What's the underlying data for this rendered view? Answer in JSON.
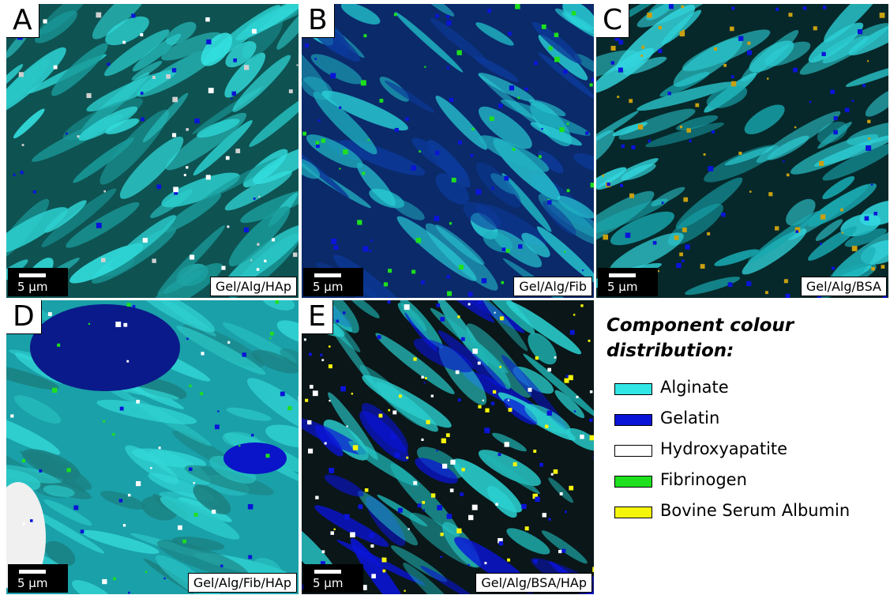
{
  "panels": [
    {
      "letter": "A",
      "scale_bar": "5 µm",
      "sample": "Gel/Alg/HAp"
    },
    {
      "letter": "B",
      "scale_bar": "5 µm",
      "sample": "Gel/Alg/Fib"
    },
    {
      "letter": "C",
      "scale_bar": "5 µm",
      "sample": "Gel/Alg/BSA"
    },
    {
      "letter": "D",
      "scale_bar": "5 µm",
      "sample": "Gel/Alg/Fib/HAp"
    },
    {
      "letter": "E",
      "scale_bar": "5 µm",
      "sample": "Gel/Alg/BSA/HAp"
    }
  ],
  "legend": {
    "title": "Component colour distribution:",
    "items": [
      {
        "label": "Alginate",
        "color": "#33e6e6"
      },
      {
        "label": "Gelatin",
        "color": "#0a14d8"
      },
      {
        "label": "Hydroxyapatite",
        "color": "#ffffff"
      },
      {
        "label": "Fibrinogen",
        "color": "#1ee01e"
      },
      {
        "label": "Bovine Serum Albumin",
        "color": "#f5f50a"
      }
    ]
  }
}
